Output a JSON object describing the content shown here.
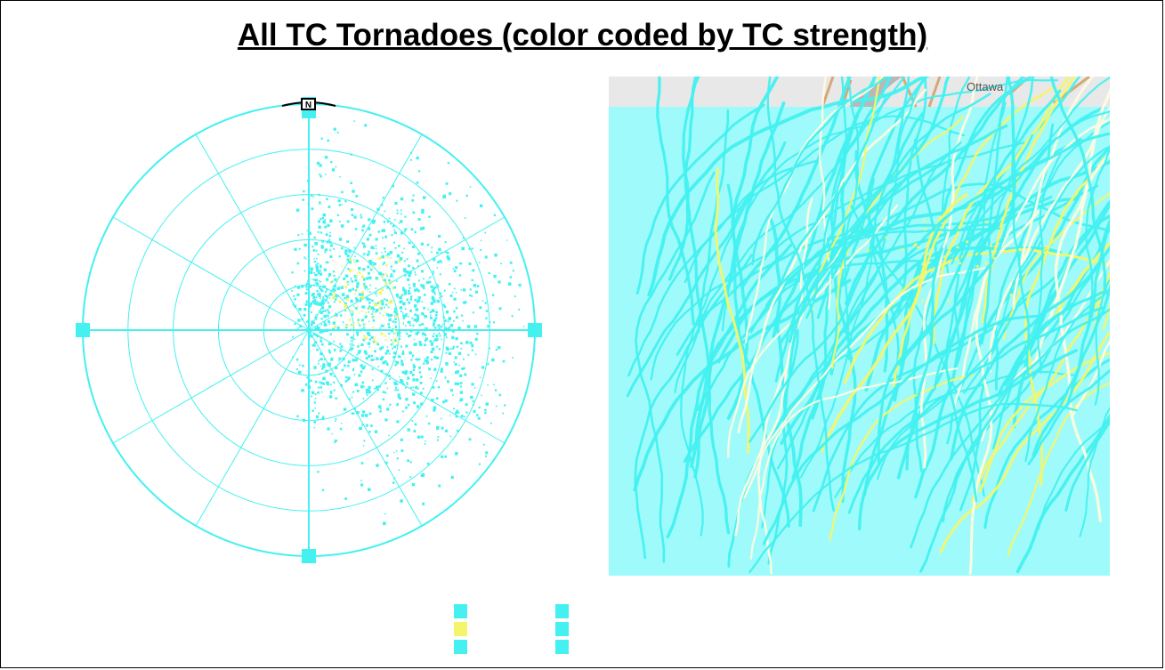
{
  "title": "All TC Tornadoes (color coded by TC strength)",
  "colors": {
    "primary": "#44f0f0",
    "secondary": "#f4f56a",
    "tertiary": "#fdfbe0",
    "map_ocean": "#9ffbfb",
    "map_land_strip": "#e8e8e8"
  },
  "polar_plot": {
    "north_label": "N",
    "rings": 5,
    "spokes": 12
  },
  "map": {
    "city_label": "Ottawa"
  },
  "legend": {
    "entries": [
      {
        "color": "#44f0f0",
        "label": ""
      },
      {
        "color": "#f4f56a",
        "label": ""
      },
      {
        "color": "#44f0f0",
        "label": ""
      },
      {
        "color": "#44f0f0",
        "label": ""
      },
      {
        "color": "#44f0f0",
        "label": ""
      },
      {
        "color": "#44f0f0",
        "label": ""
      }
    ]
  },
  "chart_data": [
    {
      "type": "scatter",
      "title": "",
      "xlabel": "",
      "ylabel": "",
      "grid": true,
      "series": [
        {
          "values": []
        }
      ]
    },
    {
      "type": "line",
      "title": "",
      "xlabel": "",
      "ylabel": "",
      "series": []
    }
  ]
}
